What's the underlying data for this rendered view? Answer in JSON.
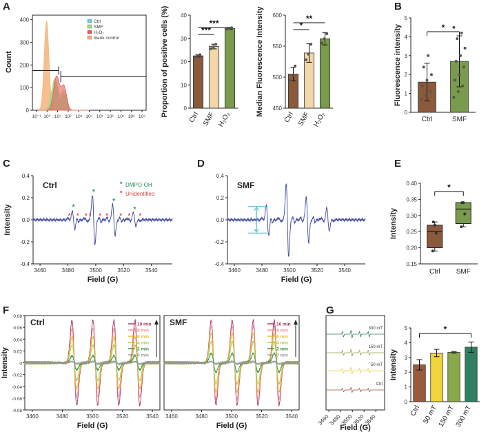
{
  "panel_labels": [
    "A",
    "B",
    "C",
    "D",
    "E",
    "F",
    "G"
  ],
  "chart_data": [
    {
      "id": "A1",
      "type": "area",
      "title": "",
      "xlabel": "",
      "ylabel": "Count",
      "xtick_labels": [
        "10⁻¹",
        "10⁰",
        "10¹",
        "10²",
        "10³",
        "10⁴",
        "10⁵",
        "10⁶",
        "10⁷",
        "10⁸",
        "10⁹"
      ],
      "ytick_labels": [
        "0",
        "100",
        "200",
        "300",
        "400"
      ],
      "ylim": [
        0,
        420
      ],
      "legend": [
        "Ctrl",
        "SMF",
        "H₂O₂",
        "blank control"
      ],
      "colors": [
        "#5fd3e6",
        "#9be36f",
        "#ee5a5a",
        "#f3b47a"
      ],
      "gate_low_y": 175,
      "gate_high_y": 185,
      "series": [
        {
          "name": "blank control",
          "peaks": [
            [
              0.95,
              395,
              0.22
            ]
          ]
        },
        {
          "name": "Ctrl",
          "peaks": [
            [
              1.7,
              130,
              0.28
            ],
            [
              2.6,
              70,
              0.25
            ]
          ]
        },
        {
          "name": "SMF",
          "peaks": [
            [
              1.75,
              140,
              0.3
            ],
            [
              2.6,
              85,
              0.25
            ]
          ]
        },
        {
          "name": "H₂O₂",
          "peaks": [
            [
              1.9,
              150,
              0.28
            ],
            [
              2.6,
              105,
              0.25
            ]
          ]
        }
      ]
    },
    {
      "id": "A2",
      "type": "bar",
      "ylabel": "Proportion of positive cells (%)",
      "categories": [
        "Ctrl",
        "SMF",
        "H₂O₂"
      ],
      "values": [
        22.5,
        26.5,
        34.3
      ],
      "errors": [
        0.5,
        1.0,
        0.4
      ],
      "points": [
        [
          22.0,
          22.6,
          23.0
        ],
        [
          25.6,
          26.4,
          27.5
        ],
        [
          34.0,
          34.3,
          34.6
        ]
      ],
      "colors": [
        "#8b5a3c",
        "#f2d7aa",
        "#7a9a4c"
      ],
      "ylim": [
        0,
        40
      ],
      "yticks": [
        0,
        10,
        20,
        30,
        40
      ],
      "sig": [
        {
          "from": 0,
          "to": 1,
          "label": "***"
        },
        {
          "from": 0,
          "to": 2,
          "label": "***"
        }
      ]
    },
    {
      "id": "A3",
      "type": "bar",
      "ylabel": "Median Fluorescence Intensity",
      "categories": [
        "Ctrl",
        "SMF",
        "H₂O₂"
      ],
      "values": [
        505,
        539,
        562
      ],
      "errors": [
        11,
        15,
        10
      ],
      "points": [
        [
          495,
          503,
          518
        ],
        [
          528,
          537,
          553
        ],
        [
          555,
          562,
          570
        ]
      ],
      "colors": [
        "#8b5a3c",
        "#f2d7aa",
        "#7a9a4c"
      ],
      "ylim": [
        450,
        600
      ],
      "yticks": [
        450,
        500,
        550,
        600
      ],
      "sig": [
        {
          "from": 0,
          "to": 1,
          "label": "*"
        },
        {
          "from": 0,
          "to": 2,
          "label": "**"
        }
      ]
    },
    {
      "id": "B",
      "type": "bar",
      "ylabel": "Fluorescence intensity",
      "categories": [
        "Ctrl",
        "SMF"
      ],
      "values": [
        1.6,
        2.7
      ],
      "errors": [
        1.0,
        1.35
      ],
      "points": [
        [
          0.7,
          0.9,
          1.1,
          1.4,
          1.7,
          2.0,
          2.4,
          3.0
        ],
        [
          0.8,
          1.1,
          1.4,
          1.7,
          2.0,
          2.4,
          2.7,
          3.0,
          3.4,
          3.9,
          4.2,
          4.5
        ]
      ],
      "colors": [
        "#8b5a3c",
        "#7a9a4c"
      ],
      "ylim": [
        0,
        5
      ],
      "yticks": [
        0,
        1,
        2,
        3,
        4,
        5
      ],
      "sig": [
        {
          "from": 0,
          "to": 1,
          "label": "*"
        }
      ]
    },
    {
      "id": "C",
      "type": "line",
      "title": "Ctrl",
      "xlabel": "Field (G)",
      "ylabel": "Intensity",
      "xlim": [
        3455,
        3555
      ],
      "ylim": [
        -0.4,
        0.4
      ],
      "xticks": [
        3460,
        3480,
        3500,
        3520,
        3540
      ],
      "yticks": [
        -0.4,
        -0.2,
        0.0,
        0.2,
        0.4
      ],
      "legend": [
        "DMPO-OH",
        "Unidentified"
      ],
      "lines": [
        [
          3484,
          0.08
        ],
        [
          3498.5,
          0.21
        ],
        [
          3513,
          0.13
        ],
        [
          3528,
          0.06
        ]
      ],
      "minor_lines": [
        [
          3481,
          0.02
        ],
        [
          3487,
          0.015
        ],
        [
          3493,
          0.02
        ],
        [
          3503,
          0.02
        ],
        [
          3509,
          0.02
        ],
        [
          3518,
          0.015
        ],
        [
          3524,
          0.015
        ],
        [
          3531,
          0.015
        ]
      ],
      "green_stars_x": [
        3484,
        3498.5,
        3513,
        3528
      ],
      "red_stars_x": [
        3481,
        3487,
        3493,
        3496,
        3503,
        3508,
        3518,
        3524,
        3532
      ]
    },
    {
      "id": "D",
      "type": "line",
      "title": "SMF",
      "xlabel": "Field (G)",
      "ylabel": "",
      "xlim": [
        3455,
        3555
      ],
      "ylim": [
        -0.4,
        0.4
      ],
      "xticks": [
        3460,
        3480,
        3500,
        3520,
        3540
      ],
      "yticks": [
        -0.4,
        -0.2,
        0.0,
        0.2,
        0.4
      ],
      "lines": [
        [
          3484,
          0.13
        ],
        [
          3498.5,
          0.31
        ],
        [
          3513,
          0.19
        ],
        [
          3528,
          0.1
        ]
      ],
      "minor_lines": [
        [
          3481,
          0.02
        ],
        [
          3487,
          0.02
        ],
        [
          3493,
          0.02
        ],
        [
          3503,
          0.025
        ],
        [
          3509,
          0.02
        ],
        [
          3518,
          0.02
        ],
        [
          3524,
          0.02
        ],
        [
          3531,
          0.015
        ]
      ],
      "annotation_label": "I",
      "annotation_y": [
        0.12,
        -0.12
      ],
      "annotation_color": "#3ab7c9"
    },
    {
      "id": "E",
      "type": "box",
      "ylabel": "Intensity",
      "categories": [
        "Ctrl",
        "SMF"
      ],
      "boxes": [
        {
          "min": 0.19,
          "q1": 0.2,
          "median": 0.25,
          "q3": 0.27,
          "max": 0.28,
          "points": [
            0.19,
            0.245,
            0.27,
            0.28
          ]
        },
        {
          "min": 0.265,
          "q1": 0.275,
          "median": 0.32,
          "q3": 0.34,
          "max": 0.34,
          "points": [
            0.265,
            0.305,
            0.34,
            0.34
          ]
        }
      ],
      "colors": [
        "#8b5a3c",
        "#7a9a4c"
      ],
      "ylim": [
        0.15,
        0.4
      ],
      "yticks": [
        0.15,
        0.2,
        0.25,
        0.3,
        0.35,
        0.4
      ],
      "sig": [
        {
          "from": 0,
          "to": 1,
          "label": "*"
        }
      ]
    },
    {
      "id": "F1",
      "type": "line",
      "title": "Ctrl",
      "xlabel": "Field (G)",
      "ylabel": "Intensity",
      "xlim": [
        3455,
        3545
      ],
      "ylim": [
        -0.08,
        0.08
      ],
      "xticks": [
        3460,
        3480,
        3500,
        3520,
        3540
      ],
      "yticks": [
        -0.08,
        -0.06,
        -0.04,
        -0.02,
        0,
        0.02,
        0.04,
        0.06,
        0.08
      ],
      "lines_x": [
        3488,
        3502,
        3516,
        3530
      ],
      "series": [
        {
          "name": "10 min",
          "amp": 0.072,
          "color": "#a3305c"
        },
        {
          "name": "8 min",
          "amp": 0.058,
          "color": "#f28c8c"
        },
        {
          "name": "6 min",
          "amp": 0.044,
          "color": "#e6b81e"
        },
        {
          "name": "4 min",
          "amp": 0.03,
          "color": "#a5c94a"
        },
        {
          "name": "2 min",
          "amp": 0.012,
          "color": "#3c8c3c"
        },
        {
          "name": "0 min",
          "amp": 0.002,
          "color": "#999999"
        }
      ]
    },
    {
      "id": "F2",
      "type": "line",
      "title": "SMF",
      "xlabel": "Field (G)",
      "ylabel": "",
      "xlim": [
        3455,
        3545
      ],
      "ylim": [
        -0.08,
        0.08
      ],
      "xticks": [
        3460,
        3480,
        3500,
        3520,
        3540
      ],
      "yticks": [],
      "lines_x": [
        3488,
        3502,
        3516,
        3530
      ],
      "series": [
        {
          "name": "10 min",
          "amp": 0.072,
          "color": "#a3305c"
        },
        {
          "name": "8 min",
          "amp": 0.062,
          "color": "#f28c8c"
        },
        {
          "name": "6 min",
          "amp": 0.05,
          "color": "#e6b81e"
        },
        {
          "name": "4 min",
          "amp": 0.036,
          "color": "#a5c94a"
        },
        {
          "name": "2 min",
          "amp": 0.016,
          "color": "#3c8c3c"
        },
        {
          "name": "0 min",
          "amp": 0.002,
          "color": "#999999"
        }
      ]
    },
    {
      "id": "G1",
      "type": "line",
      "xlabel": "Field (G)",
      "ylabel": "",
      "xlim": [
        3455,
        3555
      ],
      "xticks": [
        3460,
        3480,
        3500,
        3520,
        3540
      ],
      "lines_x": [
        3484,
        3498.5,
        3513,
        3528
      ],
      "series": [
        {
          "name": "300 mT",
          "color": "#2f8060",
          "amp": 1.0
        },
        {
          "name": "150 mT",
          "color": "#8aa84a",
          "amp": 0.9
        },
        {
          "name": "50 mT",
          "color": "#f0d43a",
          "amp": 0.85
        },
        {
          "name": "Ctrl",
          "color": "#9b5a3a",
          "amp": 0.65
        }
      ]
    },
    {
      "id": "G2",
      "type": "bar",
      "ylabel": "Intensity",
      "categories": [
        "Ctrl",
        "50 mT",
        "150 mT",
        "300 mT"
      ],
      "values": [
        2.5,
        3.3,
        3.35,
        3.7
      ],
      "errors": [
        0.35,
        0.25,
        0.05,
        0.35
      ],
      "colors": [
        "#9b5a3a",
        "#f0d43a",
        "#8aa84a",
        "#2f8060"
      ],
      "ylim": [
        0,
        5
      ],
      "yticks": [
        0,
        1,
        2,
        3,
        4,
        5
      ],
      "sig": [
        {
          "from": 0,
          "to": 3,
          "label": "*"
        }
      ]
    }
  ]
}
